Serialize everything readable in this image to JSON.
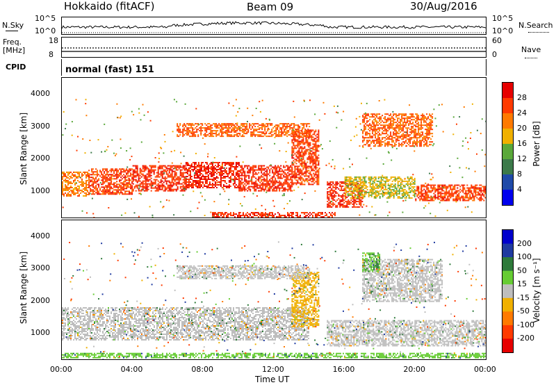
{
  "header": {
    "station": "Hokkaido (fitACF)",
    "beam": "Beam 09",
    "date": "30/Aug/2016"
  },
  "aux": {
    "nsky_label": "N.Sky",
    "nsky_ticks": [
      "10^5",
      "10^0"
    ],
    "nsearch_label": "N.Search",
    "nsearch_ticks": [
      "10^5",
      "10^0"
    ],
    "freq_label": "Freq.",
    "freq_unit": "[MHz]",
    "freq_ticks": [
      "18",
      "8"
    ],
    "nave_label": "Nave",
    "nave_ticks": [
      "60",
      "0"
    ],
    "cpid_label": "CPID",
    "cpid_value": "normal (fast) 151"
  },
  "chart_data": [
    {
      "type": "heatmap",
      "name": "power",
      "ylabel": "Slant Range [km]",
      "xlabel": "Time UT",
      "x_ticks": [
        "00:00",
        "04:00",
        "08:00",
        "12:00",
        "16:00",
        "20:00",
        "00:00"
      ],
      "xlim_hours": [
        0,
        24
      ],
      "y_ticks": [
        1000,
        2000,
        3000,
        4000
      ],
      "ylim": [
        180,
        4500
      ],
      "colorbar": {
        "label": "Power [dB]",
        "ticks": [
          4,
          8,
          12,
          16,
          20,
          24,
          28
        ],
        "colors": [
          "#0000ee",
          "#1f4aa8",
          "#3c7a4a",
          "#5aa83a",
          "#f0b000",
          "#ff7a00",
          "#ff3a00",
          "#e60000"
        ]
      },
      "bands": [
        {
          "t0": 0.0,
          "t1": 1.5,
          "r0": 850,
          "r1": 1600,
          "level": 22
        },
        {
          "t0": 1.5,
          "t1": 4.0,
          "r0": 900,
          "r1": 1700,
          "level": 26
        },
        {
          "t0": 4.0,
          "t1": 7.0,
          "r0": 1000,
          "r1": 1800,
          "level": 27
        },
        {
          "t0": 7.0,
          "t1": 10.0,
          "r0": 1100,
          "r1": 1900,
          "level": 28
        },
        {
          "t0": 10.0,
          "t1": 13.0,
          "r0": 1000,
          "r1": 1800,
          "level": 27
        },
        {
          "t0": 13.0,
          "t1": 14.5,
          "r0": 1200,
          "r1": 2900,
          "level": 26
        },
        {
          "t0": 6.5,
          "t1": 14.0,
          "r0": 2700,
          "r1": 3100,
          "level": 24
        },
        {
          "t0": 15.0,
          "t1": 17.0,
          "r0": 500,
          "r1": 1300,
          "level": 27
        },
        {
          "t0": 17.0,
          "t1": 21.0,
          "r0": 2400,
          "r1": 3400,
          "level": 24
        },
        {
          "t0": 20.0,
          "t1": 24.0,
          "r0": 700,
          "r1": 1200,
          "level": 26
        },
        {
          "t0": 8.5,
          "t1": 15.5,
          "r0": 220,
          "r1": 350,
          "level": 27
        },
        {
          "t0": 16.0,
          "t1": 20.0,
          "r0": 800,
          "r1": 1450,
          "level": 17
        }
      ]
    },
    {
      "type": "heatmap",
      "name": "velocity",
      "ylabel": "Slant Range [km]",
      "xlabel": "Time UT",
      "x_ticks": [
        "00:00",
        "04:00",
        "08:00",
        "12:00",
        "16:00",
        "20:00",
        "00:00"
      ],
      "xlim_hours": [
        0,
        24
      ],
      "y_ticks": [
        1000,
        2000,
        3000,
        4000
      ],
      "ylim": [
        180,
        4500
      ],
      "colorbar": {
        "label": "Velocity [m s⁻¹]",
        "ticks": [
          200,
          100,
          50,
          15,
          -15,
          -50,
          -100,
          -200
        ],
        "colors": [
          "#0000cc",
          "#1f3aa0",
          "#2e7a3a",
          "#66cc33",
          "#bebebe",
          "#f0b000",
          "#ff7a00",
          "#ff3a00",
          "#e60000"
        ]
      },
      "bands": [
        {
          "t0": 0.0,
          "t1": 14.0,
          "r0": 800,
          "r1": 1800,
          "level": 0
        },
        {
          "t0": 13.0,
          "t1": 14.5,
          "r0": 1200,
          "r1": 2900,
          "level": -20
        },
        {
          "t0": 6.5,
          "t1": 14.0,
          "r0": 2700,
          "r1": 3100,
          "level": 0
        },
        {
          "t0": 17.0,
          "t1": 21.5,
          "r0": 2000,
          "r1": 3300,
          "level": 5
        },
        {
          "t0": 15.0,
          "t1": 24.0,
          "r0": 600,
          "r1": 1400,
          "level": 0
        },
        {
          "t0": 0.0,
          "t1": 24.0,
          "r0": 220,
          "r1": 380,
          "level": 25
        },
        {
          "t0": 17.0,
          "t1": 18.0,
          "r0": 2900,
          "r1": 3500,
          "level": 30
        }
      ]
    }
  ]
}
